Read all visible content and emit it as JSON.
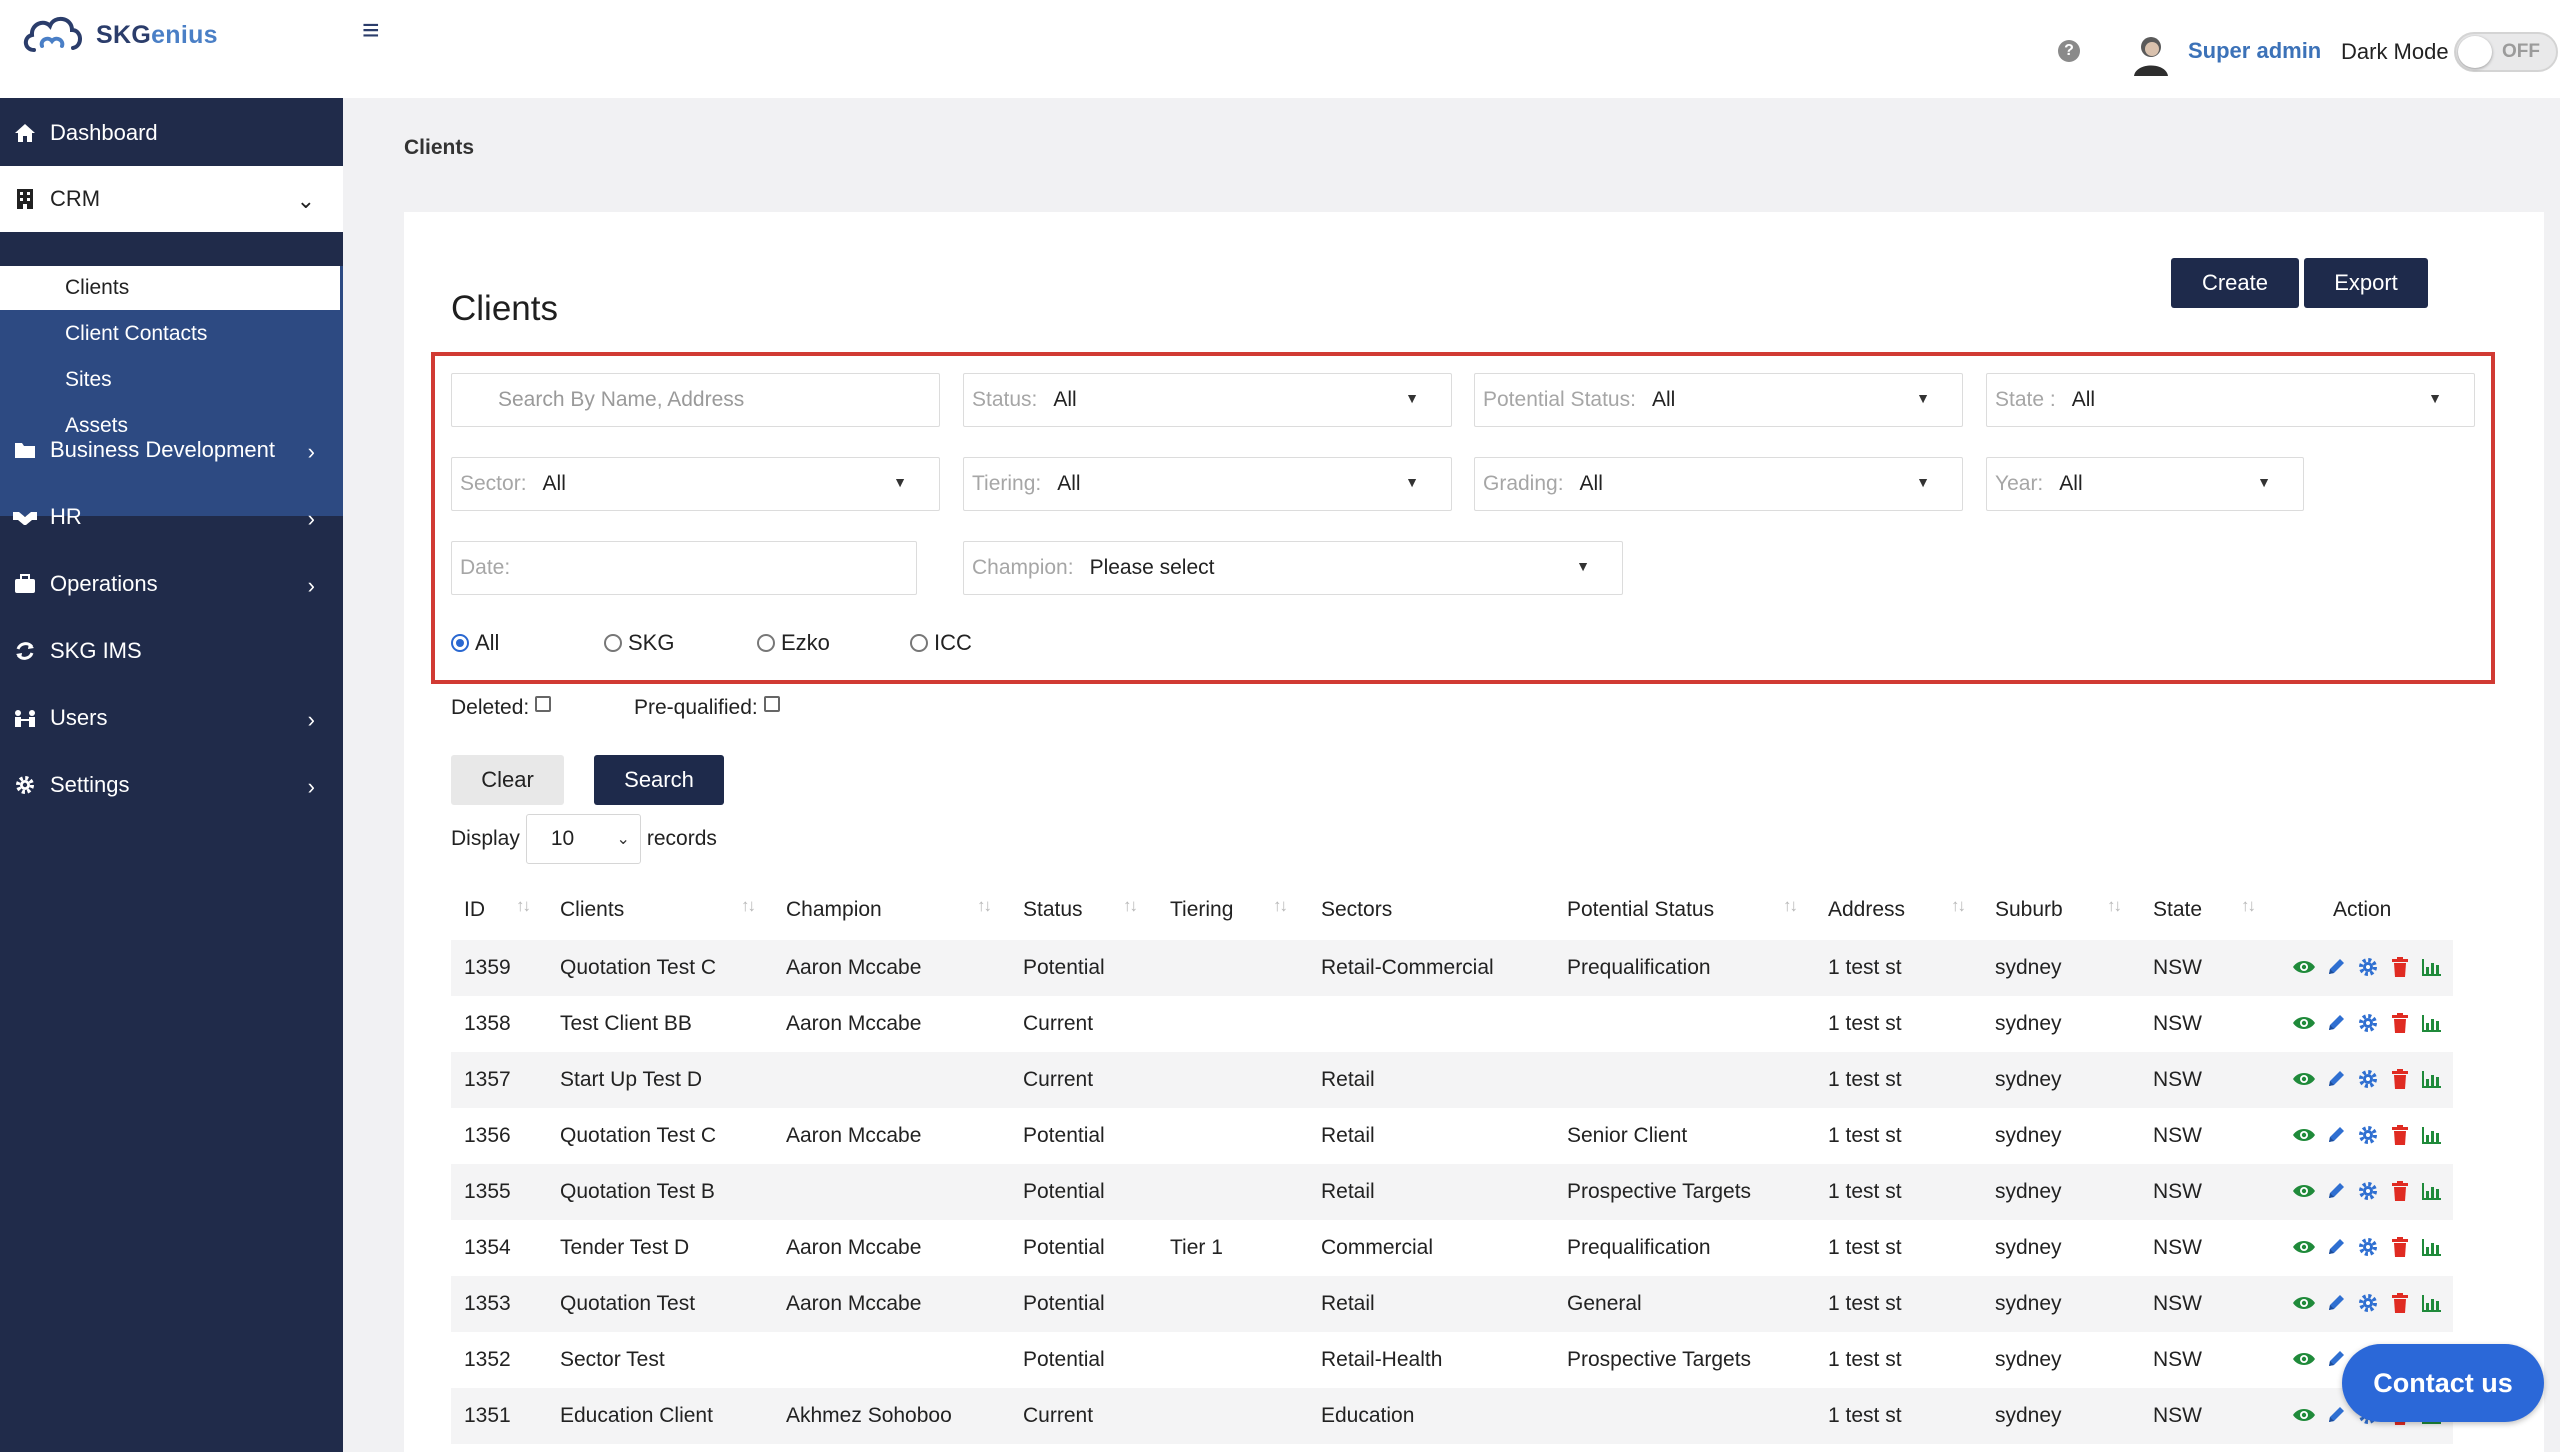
{
  "app": {
    "name_part1": "SKG",
    "name_part2": "enius",
    "name_letter": "G"
  },
  "header": {
    "menu_icon": "hamburger-icon",
    "help_icon": "question-circle-icon",
    "user_name": "Super admin",
    "dark_mode_label": "Dark Mode",
    "dark_mode_state": "OFF"
  },
  "sidebar": {
    "items": [
      {
        "label": "Dashboard",
        "icon": "home-icon"
      },
      {
        "label": "CRM",
        "icon": "building-icon",
        "expanded": true
      },
      {
        "label": "Business Development",
        "icon": "folder-icon"
      },
      {
        "label": "HR",
        "icon": "handshake-icon"
      },
      {
        "label": "Operations",
        "icon": "briefcase-icon"
      },
      {
        "label": "SKG IMS",
        "icon": "sync-icon"
      },
      {
        "label": "Users",
        "icon": "users-icon"
      },
      {
        "label": "Settings",
        "icon": "gear-icon"
      }
    ],
    "crm_subitems": [
      "Clients",
      "Client Contacts",
      "Sites",
      "Assets"
    ]
  },
  "breadcrumb": "Clients",
  "page_title": "Clients",
  "toolbar": {
    "create_label": "Create",
    "export_label": "Export"
  },
  "filters": {
    "search_placeholder": "Search By Name, Address",
    "status": {
      "label": "Status:",
      "value": "All"
    },
    "potential_status": {
      "label": "Potential Status:",
      "value": "All"
    },
    "state": {
      "label": "State :",
      "value": "All"
    },
    "sector": {
      "label": "Sector:",
      "value": "All"
    },
    "tiering": {
      "label": "Tiering:",
      "value": "All"
    },
    "grading": {
      "label": "Grading:",
      "value": "All"
    },
    "year": {
      "label": "Year:",
      "value": "All"
    },
    "date_placeholder": "Date:",
    "champion": {
      "label": "Champion:",
      "value": "Please select"
    },
    "company_options": [
      "All",
      "SKG",
      "Ezko",
      "ICC"
    ],
    "company_selected": "All",
    "deleted_label": "Deleted:",
    "prequalified_label": "Pre-qualified:",
    "clear_label": "Clear",
    "search_label": "Search"
  },
  "display": {
    "prefix": "Display",
    "value": "10",
    "suffix": "records"
  },
  "table": {
    "columns": [
      "ID",
      "Clients",
      "Champion",
      "Status",
      "Tiering",
      "Sectors",
      "Potential Status",
      "Address",
      "Suburb",
      "State",
      "Action"
    ],
    "rows": [
      [
        "1359",
        "Quotation Test C",
        "Aaron Mccabe",
        "Potential",
        "",
        "Retail-Commercial",
        "Prequalification",
        "1 test st",
        "sydney",
        "NSW"
      ],
      [
        "1358",
        "Test Client BB",
        "Aaron Mccabe",
        "Current",
        "",
        "",
        "",
        "1 test st",
        "sydney",
        "NSW"
      ],
      [
        "1357",
        "Start Up Test D",
        "",
        "Current",
        "",
        "Retail",
        "",
        "1 test st",
        "sydney",
        "NSW"
      ],
      [
        "1356",
        "Quotation Test C",
        "Aaron Mccabe",
        "Potential",
        "",
        "Retail",
        "Senior Client",
        "1 test st",
        "sydney",
        "NSW"
      ],
      [
        "1355",
        "Quotation Test B",
        "",
        "Potential",
        "",
        "Retail",
        "Prospective Targets",
        "1 test st",
        "sydney",
        "NSW"
      ],
      [
        "1354",
        "Tender Test D",
        "Aaron Mccabe",
        "Potential",
        "Tier 1",
        "Commercial",
        "Prequalification",
        "1 test st",
        "sydney",
        "NSW"
      ],
      [
        "1353",
        "Quotation Test",
        "Aaron Mccabe",
        "Potential",
        "",
        "Retail",
        "General",
        "1 test st",
        "sydney",
        "NSW"
      ],
      [
        "1352",
        "Sector Test",
        "",
        "Potential",
        "",
        "Retail-Health",
        "Prospective Targets",
        "1 test st",
        "sydney",
        "NSW"
      ],
      [
        "1351",
        "Education Client",
        "Akhmez Sohoboo",
        "Current",
        "",
        "Education",
        "",
        "1 test st",
        "sydney",
        "NSW"
      ]
    ],
    "action_icons": [
      "eye-icon",
      "pencil-icon",
      "gear-icon",
      "trash-icon",
      "bar-chart-icon"
    ]
  },
  "contact_us": "Contact us",
  "colors": {
    "sidebar": "#202b4a",
    "subnav": "#2d4a82",
    "primary_button": "#1e2a4b",
    "highlight_border": "#d13a33",
    "contact": "#2b68d8"
  }
}
